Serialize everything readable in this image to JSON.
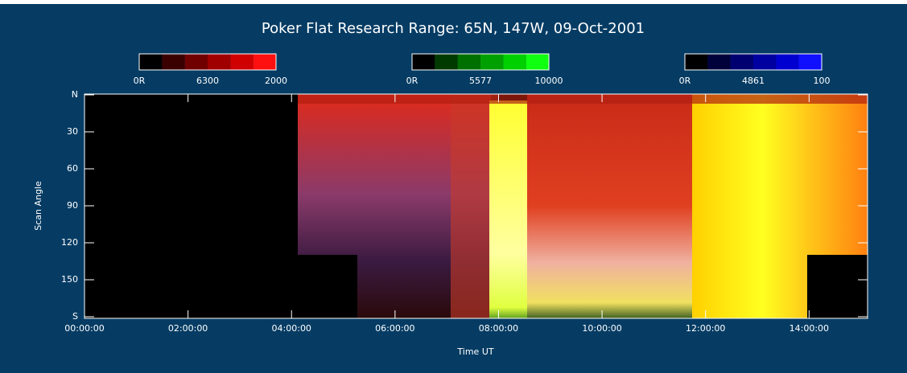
{
  "chart_data": {
    "type": "keogram",
    "title": "Poker Flat Research Range: 65N, 147W, 09-Oct-2001",
    "x_label": "Time UT",
    "y_label": "Scan Angle",
    "xlim": [
      0,
      15.13
    ],
    "xticks": [
      {
        "value": 0,
        "label": "00:00:00"
      },
      {
        "value": 2,
        "label": "02:00:00"
      },
      {
        "value": 4,
        "label": "04:00:00"
      },
      {
        "value": 6,
        "label": "06:00:00"
      },
      {
        "value": 8,
        "label": "08:00:00"
      },
      {
        "value": 10,
        "label": "10:00:00"
      },
      {
        "value": 12,
        "label": "12:00:00"
      },
      {
        "value": 14,
        "label": "14:00:00"
      }
    ],
    "ylim": [
      0,
      180
    ],
    "yticks": [
      {
        "value": 0,
        "label": "N"
      },
      30,
      60,
      90,
      120,
      150,
      {
        "value": 180,
        "label": "S"
      }
    ],
    "colorbars": [
      {
        "min_label": "0R",
        "name": "6300",
        "max_label": "2000",
        "colors": [
          "#000000",
          "#3a0000",
          "#700000",
          "#a00000",
          "#d00000",
          "#ff1010"
        ]
      },
      {
        "min_label": "0R",
        "name": "5577",
        "max_label": "10000",
        "colors": [
          "#000000",
          "#003a00",
          "#007000",
          "#00a000",
          "#00d000",
          "#10ff10"
        ]
      },
      {
        "min_label": "0R",
        "name": "4861",
        "max_label": "100",
        "colors": [
          "#000000",
          "#00003a",
          "#000070",
          "#0000a0",
          "#0000d0",
          "#1010ff"
        ]
      }
    ]
  }
}
